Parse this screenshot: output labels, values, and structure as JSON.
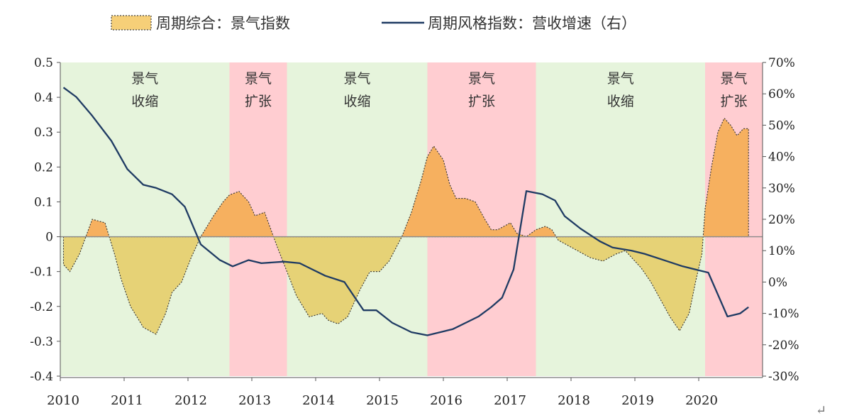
{
  "legend": {
    "series1": "周期综合：景气指数",
    "series2": "周期风格指数：营收增速（右）"
  },
  "chart_data": {
    "type": "line",
    "x_axis": {
      "ticks": [
        "2010",
        "2011",
        "2012",
        "2013",
        "2014",
        "2015",
        "2016",
        "2017",
        "2018",
        "2019",
        "2020"
      ],
      "range": [
        2010.0,
        2021.0
      ]
    },
    "y_left": {
      "range": [
        -0.4,
        0.5
      ],
      "ticks": [
        "0.5",
        "0.4",
        "0.3",
        "0.2",
        "0.1",
        "0",
        "-0.1",
        "-0.2",
        "-0.3",
        "-0.4"
      ],
      "tick_values": [
        0.5,
        0.4,
        0.3,
        0.2,
        0.1,
        0,
        -0.1,
        -0.2,
        -0.3,
        -0.4
      ]
    },
    "y_right": {
      "range": [
        -30,
        70
      ],
      "ticks": [
        "70%",
        "60%",
        "50%",
        "40%",
        "30%",
        "20%",
        "10%",
        "0%",
        "-10%",
        "-20%",
        "-30%"
      ],
      "tick_values": [
        70,
        60,
        50,
        40,
        30,
        20,
        10,
        0,
        -10,
        -20,
        -30
      ]
    },
    "phases": [
      {
        "start": 2010.0,
        "end": 2012.65,
        "state": "contraction",
        "label1": "景气",
        "label2": "收缩",
        "color": "#e6f4dc"
      },
      {
        "start": 2012.65,
        "end": 2013.55,
        "state": "expansion",
        "label1": "景气",
        "label2": "扩张",
        "color": "#ffcdd1"
      },
      {
        "start": 2013.55,
        "end": 2015.75,
        "state": "contraction",
        "label1": "景气",
        "label2": "收缩",
        "color": "#e6f4dc"
      },
      {
        "start": 2015.75,
        "end": 2017.45,
        "state": "expansion",
        "label1": "景气",
        "label2": "扩张",
        "color": "#ffcdd1"
      },
      {
        "start": 2017.45,
        "end": 2020.1,
        "state": "contraction",
        "label1": "景气",
        "label2": "收缩",
        "color": "#e6f4dc"
      },
      {
        "start": 2020.1,
        "end": 2021.0,
        "state": "expansion",
        "label1": "景气",
        "label2": "扩张",
        "color": "#ffcdd1"
      }
    ],
    "series": [
      {
        "name": "周期综合：景气指数",
        "axis": "left",
        "style": "area-dotted",
        "positive_color": "#f6b05f",
        "negative_color": "#e6d276",
        "x": [
          2010.05,
          2010.15,
          2010.3,
          2010.5,
          2010.7,
          2010.85,
          2010.95,
          2011.1,
          2011.3,
          2011.5,
          2011.65,
          2011.75,
          2011.9,
          2012.05,
          2012.2,
          2012.4,
          2012.55,
          2012.65,
          2012.8,
          2012.95,
          2013.05,
          2013.2,
          2013.3,
          2013.4,
          2013.55,
          2013.7,
          2013.9,
          2014.1,
          2014.2,
          2014.35,
          2014.5,
          2014.7,
          2014.85,
          2015.0,
          2015.15,
          2015.35,
          2015.5,
          2015.65,
          2015.75,
          2015.85,
          2016.0,
          2016.1,
          2016.2,
          2016.35,
          2016.5,
          2016.65,
          2016.75,
          2016.85,
          2016.95,
          2017.05,
          2017.15,
          2017.3,
          2017.45,
          2017.6,
          2017.7,
          2017.8,
          2017.9,
          2018.1,
          2018.3,
          2018.5,
          2018.7,
          2018.85,
          2018.95,
          2019.1,
          2019.25,
          2019.4,
          2019.55,
          2019.7,
          2019.85,
          2019.95,
          2020.05,
          2020.1,
          2020.2,
          2020.3,
          2020.4,
          2020.5,
          2020.6,
          2020.7,
          2020.78
        ],
        "y": [
          -0.08,
          -0.1,
          -0.05,
          0.05,
          0.04,
          -0.05,
          -0.12,
          -0.2,
          -0.26,
          -0.28,
          -0.22,
          -0.16,
          -0.13,
          -0.06,
          0.0,
          0.06,
          0.1,
          0.12,
          0.13,
          0.1,
          0.06,
          0.07,
          0.02,
          -0.03,
          -0.1,
          -0.17,
          -0.23,
          -0.22,
          -0.24,
          -0.25,
          -0.23,
          -0.15,
          -0.1,
          -0.1,
          -0.07,
          0.0,
          0.07,
          0.16,
          0.23,
          0.26,
          0.22,
          0.15,
          0.11,
          0.11,
          0.1,
          0.05,
          0.02,
          0.02,
          0.03,
          0.04,
          0.01,
          0.0,
          0.02,
          0.03,
          0.02,
          -0.01,
          -0.02,
          -0.04,
          -0.06,
          -0.07,
          -0.05,
          -0.04,
          -0.06,
          -0.09,
          -0.13,
          -0.18,
          -0.23,
          -0.27,
          -0.22,
          -0.13,
          -0.05,
          0.08,
          0.2,
          0.3,
          0.34,
          0.32,
          0.29,
          0.31,
          0.31
        ]
      },
      {
        "name": "周期风格指数：营收增速（右）",
        "axis": "right",
        "style": "line",
        "color": "#1f3b63",
        "x": [
          2010.05,
          2010.25,
          2010.5,
          2010.8,
          2011.05,
          2011.3,
          2011.5,
          2011.75,
          2011.95,
          2012.2,
          2012.5,
          2012.7,
          2012.95,
          2013.15,
          2013.5,
          2013.75,
          2013.95,
          2014.15,
          2014.45,
          2014.75,
          2014.95,
          2015.2,
          2015.5,
          2015.75,
          2015.95,
          2016.15,
          2016.35,
          2016.55,
          2016.75,
          2016.92,
          2017.1,
          2017.3,
          2017.55,
          2017.75,
          2017.9,
          2018.15,
          2018.45,
          2018.65,
          2018.95,
          2019.15,
          2019.45,
          2019.75,
          2019.95,
          2020.15,
          2020.45,
          2020.65,
          2020.78
        ],
        "y": [
          62,
          59,
          53,
          45,
          36,
          31,
          30,
          28,
          24,
          12,
          7,
          5,
          7,
          6,
          6.5,
          6,
          4,
          2,
          0,
          -9,
          -9,
          -13,
          -16,
          -17,
          -16,
          -15,
          -13,
          -11,
          -8,
          -5,
          4,
          29,
          28,
          26,
          21,
          17,
          13,
          11,
          10,
          9,
          7,
          5,
          4,
          3,
          -11,
          -10,
          -8
        ]
      }
    ]
  }
}
